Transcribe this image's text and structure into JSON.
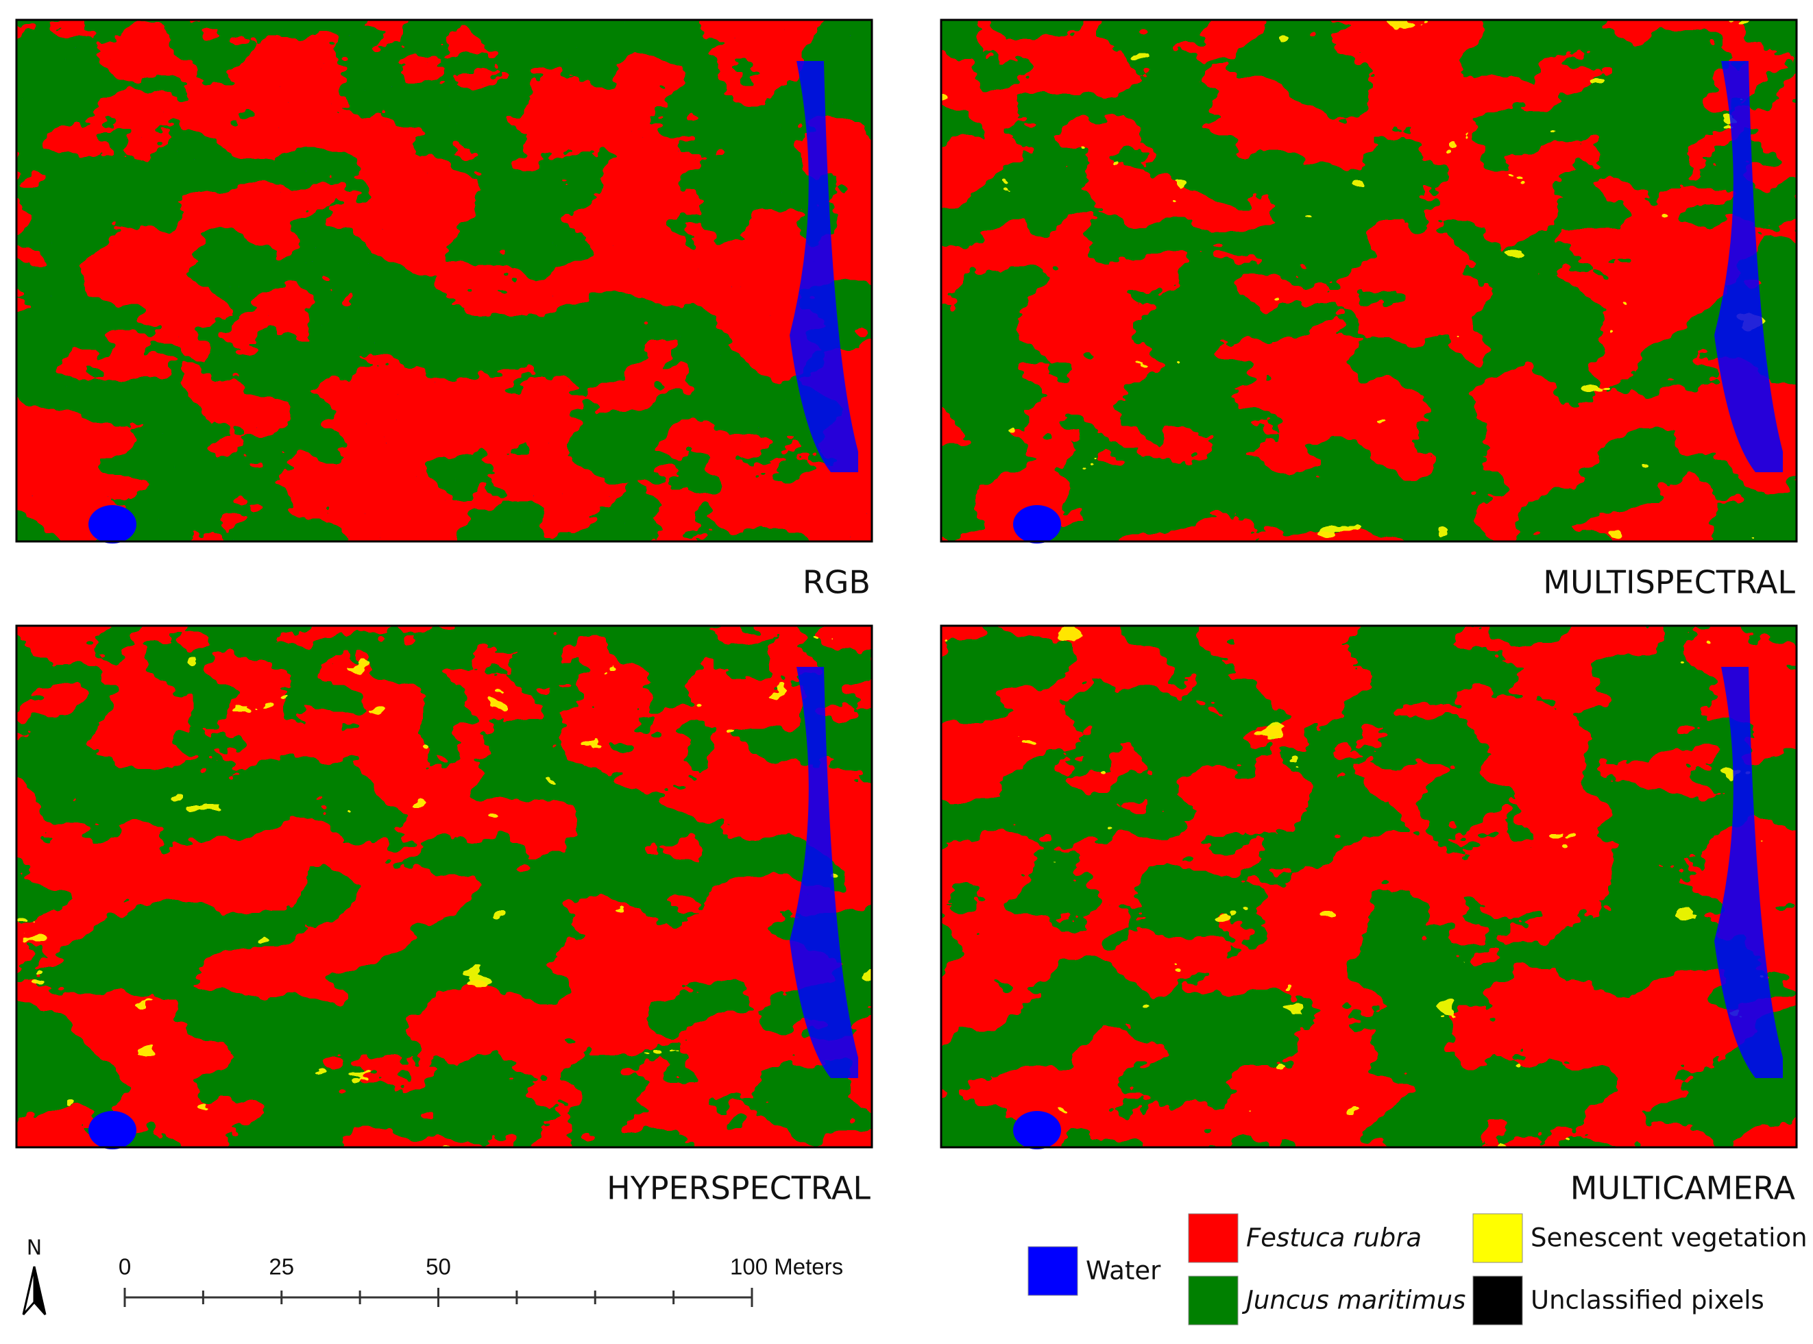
{
  "panels": [
    {
      "label": "RGB"
    },
    {
      "label": "MULTISPECTRAL"
    },
    {
      "label": "HYPERSPECTRAL"
    },
    {
      "label": "MULTICAMERA"
    }
  ],
  "north_arrow": {
    "label": "N"
  },
  "scale_bar": {
    "labels": [
      "0",
      "25",
      "50",
      "100 Meters"
    ]
  },
  "legend": [
    {
      "label": "Water",
      "color": "#0000ff",
      "italic": false
    },
    {
      "label": "Festuca rubra",
      "color": "#ff0000",
      "italic": true
    },
    {
      "label": "Juncus maritimus",
      "color": "#008000",
      "italic": true
    },
    {
      "label": "Senescent vegetation",
      "color": "#ffff00",
      "italic": false
    },
    {
      "label": "Unclassified pixels",
      "color": "#000000",
      "italic": false
    }
  ]
}
